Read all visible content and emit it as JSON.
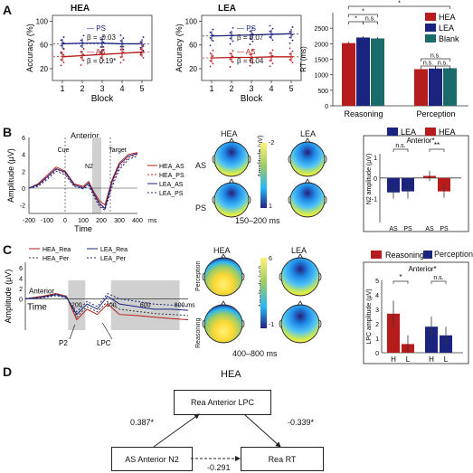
{
  "panels": {
    "a": "A",
    "b": "B",
    "c": "C",
    "d": "D"
  },
  "panel_a": {
    "hea_title": "HEA",
    "lea_title": "LEA",
    "xlabel": "Block",
    "ylabel": "Accuracy (%)",
    "hea_legend": {
      "ps": "PS",
      "ps_beta": "β = -0.03",
      "as": "AS",
      "as_beta": "β = 0.19*"
    },
    "lea_legend": {
      "ps": "PS",
      "ps_beta": "β = 0.07",
      "as": "AS",
      "as_beta": "β = 0.04"
    }
  },
  "panel_b": {
    "title": "Anterior",
    "cue": "Cue",
    "target": "Target",
    "n2": "N2",
    "xlabel": "Time",
    "ylabel": "Amplitude (μV)",
    "legend": [
      "HEA_AS",
      "HEA_PS",
      "LEA_AS",
      "LEA_PS"
    ],
    "topo_hea": "HEA",
    "topo_lea": "LEA",
    "row_as": "AS",
    "row_ps": "PS",
    "scale_label": "Amplitude (μV)",
    "scale_top": "-2",
    "scale_bottom": "1",
    "window": "150–200 ms",
    "bar_legend": {
      "lea": "LEA",
      "hea": "HEA"
    },
    "bar_title": "Anterior*",
    "bar_ylabel": "N2 amplitude (μV)",
    "sig_left": "n.s.",
    "sig_right": "**"
  },
  "panel_c": {
    "legend": [
      "HEA_Rea",
      "LEA_Rea",
      "HEA_Per",
      "LEA_Per"
    ],
    "anterior": "Anterior",
    "xlabel": "Time",
    "ylabel": "Amplitude (μV)",
    "p2": "P2",
    "lpc": "LPC",
    "ms": "ms",
    "topo_hea": "HEA",
    "topo_lea": "LEA",
    "row_per": "Perception",
    "row_rea": "Reasoning",
    "scale_label": "Amplitude (μV)",
    "scale_top": "6",
    "scale_bottom": "-1",
    "window": "400–800 ms",
    "bar_legend": {
      "rea": "Reasoning",
      "per": "Perception"
    },
    "bar_title": "Anterior*",
    "bar_ylabel": "LPC amplitude (μV)",
    "sig_left": "*",
    "sig_right": "n.s."
  },
  "panel_d": {
    "title": "HEA",
    "top_box": "Rea Anterior LPC",
    "left_box": "AS Anterior N2",
    "right_box": "Rea RT",
    "coef_left": "0.387*",
    "coef_right": "-0.339*",
    "coef_bottom": "-0.291"
  },
  "colors": {
    "red": "#b71c1c",
    "blue": "#1a237e",
    "teal": "#1b6b6b",
    "gray": "#d0d0d0"
  },
  "chart_data": [
    {
      "type": "bar",
      "id": "rt",
      "ylabel": "RT (ms)",
      "ylim": [
        0,
        3000
      ],
      "yticks": [
        0,
        500,
        1000,
        1500,
        2000,
        2500
      ],
      "categories": [
        "Reasoning",
        "Perception"
      ],
      "legend": [
        "HEA",
        "LEA",
        "Blank"
      ],
      "series": [
        {
          "name": "HEA",
          "values": [
            2020,
            1180
          ],
          "err": [
            40,
            25
          ]
        },
        {
          "name": "LEA",
          "values": [
            2200,
            1200
          ],
          "err": [
            40,
            25
          ]
        },
        {
          "name": "Blank",
          "values": [
            2170,
            1210
          ],
          "err": [
            35,
            25
          ]
        }
      ],
      "sig_labels": [
        "*",
        "*",
        "n.s.",
        "*",
        "n.s.",
        "n.s.",
        "n.s."
      ]
    },
    {
      "type": "bar",
      "id": "n2",
      "ylabel": "N2 amplitude (μV)",
      "ylim": [
        -1,
        1
      ],
      "yticks": [
        -1,
        0,
        1
      ],
      "categories": [
        "AS",
        "PS",
        "AS",
        "PS"
      ],
      "groups": [
        "LEA",
        "HEA"
      ],
      "values": [
        -0.7,
        -0.65,
        0.1,
        -0.65
      ],
      "err": [
        0.3,
        0.35,
        0.25,
        0.3
      ]
    },
    {
      "type": "bar",
      "id": "lpc",
      "ylabel": "LPC amplitude (μV)",
      "ylim": [
        0,
        5
      ],
      "yticks": [
        0,
        1,
        2,
        3,
        4,
        5
      ],
      "categories": [
        "H",
        "L",
        "H",
        "L"
      ],
      "groups": [
        "Reasoning",
        "Perception"
      ],
      "values": [
        2.7,
        0.6,
        1.8,
        1.2
      ],
      "err": [
        0.9,
        0.6,
        0.7,
        0.6
      ]
    },
    {
      "type": "line",
      "id": "acc_hea",
      "ylabel": "Accuracy (%)",
      "xlabel": "Block",
      "x": [
        1,
        2,
        3,
        4,
        5
      ],
      "yticks": [
        20,
        60,
        100
      ],
      "xlim": [
        0.5,
        5.5
      ],
      "ylim": [
        0,
        110
      ],
      "series": [
        {
          "name": "PS",
          "values": [
            62,
            63,
            63,
            62,
            62
          ]
        },
        {
          "name": "AS",
          "values": [
            40,
            42,
            44,
            46,
            48
          ]
        }
      ]
    },
    {
      "type": "line",
      "id": "acc_lea",
      "ylabel": "Accuracy (%)",
      "xlabel": "Block",
      "x": [
        1,
        2,
        3,
        4,
        5
      ],
      "yticks": [
        20,
        60,
        100
      ],
      "xlim": [
        0.5,
        5.5
      ],
      "ylim": [
        0,
        110
      ],
      "series": [
        {
          "name": "PS",
          "values": [
            75,
            76,
            77,
            78,
            79
          ]
        },
        {
          "name": "AS",
          "values": [
            38,
            39,
            39,
            40,
            40
          ]
        }
      ]
    },
    {
      "type": "line",
      "id": "erp_b",
      "xlabel": "Time",
      "xticks": [
        -200,
        -100,
        0,
        100,
        200,
        300,
        400
      ],
      "yticks": [
        -2,
        0,
        2,
        4,
        6
      ],
      "xlim": [
        -200,
        400
      ],
      "ylim": [
        -3,
        6
      ],
      "x": [
        -200,
        -150,
        -100,
        -50,
        0,
        50,
        100,
        130,
        160,
        190,
        220,
        260,
        300,
        350,
        400
      ],
      "series": [
        {
          "name": "HEA_AS",
          "values": [
            0,
            0.5,
            1.5,
            2.5,
            2,
            0.5,
            0.2,
            0.8,
            -0.5,
            -1.5,
            -2,
            1,
            3,
            4,
            4.2
          ]
        },
        {
          "name": "HEA_PS",
          "values": [
            0,
            0.3,
            1.2,
            2.2,
            1.8,
            0.3,
            0.1,
            0.5,
            -0.8,
            -2,
            -2.5,
            0.5,
            2.5,
            3.6,
            4
          ]
        },
        {
          "name": "LEA_AS",
          "values": [
            0,
            0.4,
            1.3,
            2.3,
            1.9,
            0.4,
            0,
            0.6,
            -0.7,
            -1.8,
            -2.4,
            0.8,
            2.8,
            3.8,
            4.1
          ]
        },
        {
          "name": "LEA_PS",
          "values": [
            0,
            0.2,
            1,
            2,
            1.6,
            0.2,
            -0.1,
            0.3,
            -1,
            -2.2,
            -2.6,
            0.2,
            2.2,
            3.4,
            3.8
          ]
        }
      ]
    },
    {
      "type": "line",
      "id": "erp_c",
      "xlabel": "Time",
      "xticks": [
        200,
        400,
        600,
        800
      ],
      "yticks": [
        0,
        2,
        4,
        6
      ],
      "xlim": [
        -100,
        850
      ],
      "ylim": [
        -6,
        7
      ],
      "x": [
        -100,
        0,
        80,
        140,
        200,
        260,
        320,
        380,
        450,
        550,
        650,
        750,
        850
      ],
      "series": [
        {
          "name": "HEA_Rea",
          "values": [
            0,
            0.5,
            1,
            0.5,
            -4,
            -2,
            -3,
            -1,
            -3,
            -3.2,
            -3.5,
            -3.8,
            -4
          ]
        },
        {
          "name": "LEA_Rea",
          "values": [
            0,
            0.3,
            0.8,
            0.3,
            -3,
            -1,
            -2,
            0.5,
            -1,
            -1.5,
            -2,
            -2,
            -2.2
          ]
        },
        {
          "name": "HEA_Per",
          "values": [
            0,
            0.4,
            1,
            0.5,
            -3.5,
            -1.5,
            -2.5,
            -0.5,
            -2,
            -2.4,
            -2.8,
            -3,
            -3.2
          ]
        },
        {
          "name": "LEA_Per",
          "values": [
            0,
            0.2,
            0.6,
            0.2,
            -2.5,
            -0.5,
            -1.5,
            1,
            0,
            -0.5,
            -1,
            -1.2,
            -1.4
          ]
        }
      ]
    }
  ]
}
